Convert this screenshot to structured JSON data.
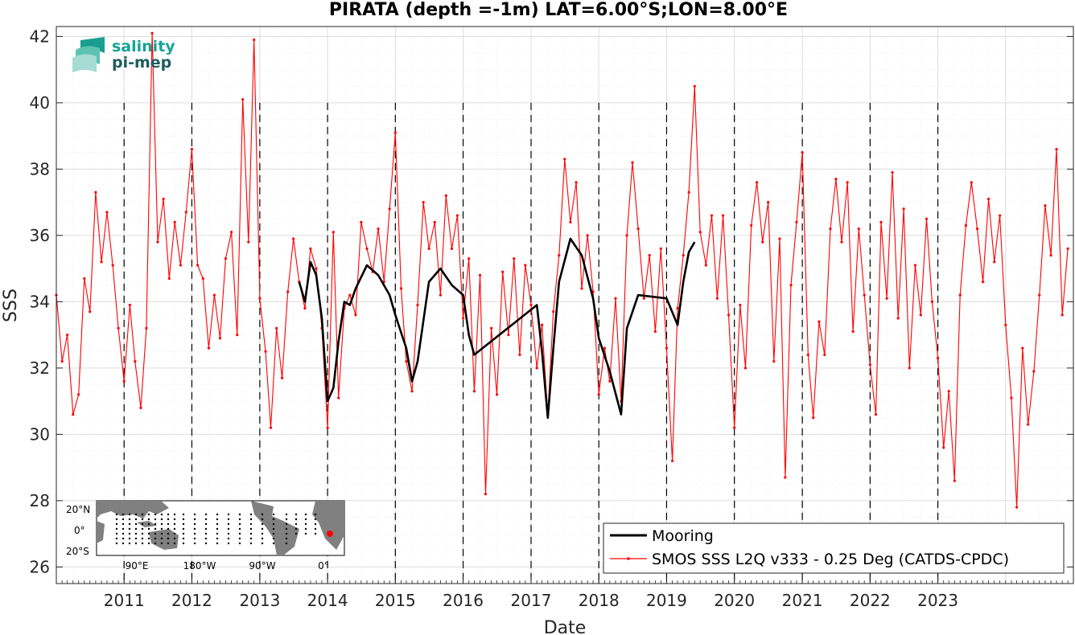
{
  "chart_data": {
    "type": "line",
    "title": "PIRATA (depth =-1m) LAT=6.00°S;LON=8.00°E",
    "xlabel": "Date",
    "ylabel": "SSS",
    "xlim": [
      "2010-01-01",
      "2024-12-31"
    ],
    "ylim": [
      25.5,
      42.3
    ],
    "y_ticks": [
      26,
      28,
      30,
      32,
      34,
      36,
      38,
      40,
      42
    ],
    "x_tick_labels": [
      "2011",
      "2012",
      "2013",
      "2014",
      "2015",
      "2016",
      "2017",
      "2018",
      "2019",
      "2020",
      "2021",
      "2022",
      "2023"
    ],
    "year_marker_lines": [
      "2011",
      "2012",
      "2013",
      "2014",
      "2015",
      "2016",
      "2017",
      "2018",
      "2019",
      "2020",
      "2021",
      "2022",
      "2023"
    ],
    "grid": true,
    "legend_position": "bottom-right",
    "series": [
      {
        "name": "Mooring",
        "color": "#000000",
        "style": "thick-line",
        "points": [
          [
            "2013-08-01",
            34.6
          ],
          [
            "2013-09-01",
            34.0
          ],
          [
            "2013-10-01",
            35.2
          ],
          [
            "2013-11-01",
            34.8
          ],
          [
            "2013-12-01",
            33.5
          ],
          [
            "2014-01-01",
            31.0
          ],
          [
            "2014-02-01",
            31.4
          ],
          [
            "2014-03-01",
            32.8
          ],
          [
            "2014-04-01",
            34.0
          ],
          [
            "2014-05-01",
            33.9
          ],
          [
            "2014-06-01",
            34.4
          ],
          [
            "2014-08-01",
            35.1
          ],
          [
            "2014-10-01",
            34.8
          ],
          [
            "2014-12-01",
            34.2
          ],
          [
            "2015-01-01",
            33.6
          ],
          [
            "2015-03-01",
            32.6
          ],
          [
            "2015-04-01",
            31.6
          ],
          [
            "2015-05-01",
            32.2
          ],
          [
            "2015-07-01",
            34.6
          ],
          [
            "2015-09-01",
            35.0
          ],
          [
            "2015-11-01",
            34.5
          ],
          [
            "2016-01-01",
            34.2
          ],
          [
            "2016-02-01",
            33.0
          ],
          [
            "2016-03-01",
            32.4
          ],
          [
            "2017-02-01",
            33.9
          ],
          [
            "2017-03-01",
            32.5
          ],
          [
            "2017-04-01",
            30.5
          ],
          [
            "2017-05-01",
            32.6
          ],
          [
            "2017-06-01",
            34.6
          ],
          [
            "2017-08-01",
            35.9
          ],
          [
            "2017-10-01",
            35.4
          ],
          [
            "2017-12-01",
            34.1
          ],
          [
            "2018-01-01",
            32.9
          ],
          [
            "2018-03-01",
            31.9
          ],
          [
            "2018-05-01",
            30.6
          ],
          [
            "2018-06-01",
            33.2
          ],
          [
            "2018-08-01",
            34.2
          ],
          [
            "2019-01-01",
            34.1
          ],
          [
            "2019-03-01",
            33.3
          ],
          [
            "2019-04-01",
            34.6
          ],
          [
            "2019-05-01",
            35.5
          ],
          [
            "2019-06-01",
            35.8
          ]
        ]
      },
      {
        "name": "SMOS SSS L2Q v333 - 0.25 Deg (CATDS-CPDC)",
        "color": "#ff0000",
        "style": "line-with-dots",
        "points": [
          [
            "2010-01-01",
            34.2
          ],
          [
            "2010-02-01",
            32.2
          ],
          [
            "2010-03-01",
            33.0
          ],
          [
            "2010-04-01",
            30.6
          ],
          [
            "2010-05-01",
            31.2
          ],
          [
            "2010-06-01",
            34.7
          ],
          [
            "2010-07-01",
            33.7
          ],
          [
            "2010-08-01",
            37.3
          ],
          [
            "2010-09-01",
            35.2
          ],
          [
            "2010-10-01",
            36.7
          ],
          [
            "2010-11-01",
            35.1
          ],
          [
            "2010-12-01",
            33.2
          ],
          [
            "2011-01-01",
            31.6
          ],
          [
            "2011-02-01",
            33.9
          ],
          [
            "2011-03-01",
            32.2
          ],
          [
            "2011-04-01",
            30.8
          ],
          [
            "2011-05-01",
            33.2
          ],
          [
            "2011-06-01",
            42.1
          ],
          [
            "2011-07-01",
            35.8
          ],
          [
            "2011-08-01",
            37.1
          ],
          [
            "2011-09-01",
            34.7
          ],
          [
            "2011-10-01",
            36.4
          ],
          [
            "2011-11-01",
            35.1
          ],
          [
            "2011-12-01",
            36.7
          ],
          [
            "2012-01-01",
            38.6
          ],
          [
            "2012-02-01",
            35.1
          ],
          [
            "2012-03-01",
            34.7
          ],
          [
            "2012-04-01",
            32.6
          ],
          [
            "2012-05-01",
            34.2
          ],
          [
            "2012-06-01",
            32.9
          ],
          [
            "2012-07-01",
            35.3
          ],
          [
            "2012-08-01",
            36.1
          ],
          [
            "2012-09-01",
            33.0
          ],
          [
            "2012-10-01",
            40.1
          ],
          [
            "2012-11-01",
            35.8
          ],
          [
            "2012-12-01",
            41.9
          ],
          [
            "2013-01-01",
            34.1
          ],
          [
            "2013-02-01",
            32.5
          ],
          [
            "2013-03-01",
            30.2
          ],
          [
            "2013-04-01",
            33.2
          ],
          [
            "2013-05-01",
            31.7
          ],
          [
            "2013-06-01",
            34.3
          ],
          [
            "2013-07-01",
            35.9
          ],
          [
            "2013-08-01",
            34.6
          ],
          [
            "2013-09-01",
            33.8
          ],
          [
            "2013-10-01",
            35.6
          ],
          [
            "2013-11-01",
            35.0
          ],
          [
            "2013-12-01",
            33.2
          ],
          [
            "2014-01-01",
            30.2
          ],
          [
            "2014-02-01",
            36.1
          ],
          [
            "2014-03-01",
            31.1
          ],
          [
            "2014-04-01",
            33.8
          ],
          [
            "2014-05-01",
            34.2
          ],
          [
            "2014-06-01",
            33.6
          ],
          [
            "2014-07-01",
            36.4
          ],
          [
            "2014-08-01",
            35.6
          ],
          [
            "2014-09-01",
            34.9
          ],
          [
            "2014-10-01",
            36.2
          ],
          [
            "2014-11-01",
            34.6
          ],
          [
            "2014-12-01",
            36.8
          ],
          [
            "2015-01-01",
            39.1
          ],
          [
            "2015-02-01",
            34.4
          ],
          [
            "2015-03-01",
            32.2
          ],
          [
            "2015-04-01",
            31.3
          ],
          [
            "2015-05-01",
            33.9
          ],
          [
            "2015-06-01",
            37.0
          ],
          [
            "2015-07-01",
            35.6
          ],
          [
            "2015-08-01",
            36.4
          ],
          [
            "2015-09-01",
            34.2
          ],
          [
            "2015-10-01",
            37.2
          ],
          [
            "2015-11-01",
            35.6
          ],
          [
            "2015-12-01",
            36.6
          ],
          [
            "2016-01-01",
            33.5
          ],
          [
            "2016-02-01",
            35.3
          ],
          [
            "2016-03-01",
            31.3
          ],
          [
            "2016-04-01",
            34.8
          ],
          [
            "2016-05-01",
            28.2
          ],
          [
            "2016-06-01",
            33.2
          ],
          [
            "2016-07-01",
            31.2
          ],
          [
            "2016-08-01",
            34.9
          ],
          [
            "2016-09-01",
            33.0
          ],
          [
            "2016-10-01",
            35.3
          ],
          [
            "2016-11-01",
            32.4
          ],
          [
            "2016-12-01",
            35.1
          ],
          [
            "2017-01-01",
            33.9
          ],
          [
            "2017-02-01",
            32.0
          ],
          [
            "2017-03-01",
            33.3
          ],
          [
            "2017-04-01",
            30.6
          ],
          [
            "2017-05-01",
            33.7
          ],
          [
            "2017-06-01",
            35.4
          ],
          [
            "2017-07-01",
            38.3
          ],
          [
            "2017-08-01",
            36.4
          ],
          [
            "2017-09-01",
            37.6
          ],
          [
            "2017-10-01",
            34.4
          ],
          [
            "2017-11-01",
            36.0
          ],
          [
            "2017-12-01",
            34.3
          ],
          [
            "2018-01-01",
            31.2
          ],
          [
            "2018-02-01",
            32.6
          ],
          [
            "2018-03-01",
            31.6
          ],
          [
            "2018-04-01",
            34.1
          ],
          [
            "2018-05-01",
            31.0
          ],
          [
            "2018-06-01",
            36.0
          ],
          [
            "2018-07-01",
            38.2
          ],
          [
            "2018-08-01",
            36.2
          ],
          [
            "2018-09-01",
            34.1
          ],
          [
            "2018-10-01",
            35.4
          ],
          [
            "2018-11-01",
            33.1
          ],
          [
            "2018-12-01",
            35.6
          ],
          [
            "2019-01-01",
            32.6
          ],
          [
            "2019-02-01",
            29.2
          ],
          [
            "2019-03-01",
            33.8
          ],
          [
            "2019-04-01",
            35.4
          ],
          [
            "2019-05-01",
            37.3
          ],
          [
            "2019-06-01",
            40.5
          ],
          [
            "2019-07-01",
            36.1
          ],
          [
            "2019-08-01",
            35.1
          ],
          [
            "2019-09-01",
            36.6
          ],
          [
            "2019-10-01",
            34.1
          ],
          [
            "2019-11-01",
            36.6
          ],
          [
            "2019-12-01",
            33.6
          ],
          [
            "2020-01-01",
            30.2
          ],
          [
            "2020-02-01",
            33.9
          ],
          [
            "2020-03-01",
            32.0
          ],
          [
            "2020-04-01",
            36.3
          ],
          [
            "2020-05-01",
            37.6
          ],
          [
            "2020-06-01",
            35.8
          ],
          [
            "2020-07-01",
            37.0
          ],
          [
            "2020-08-01",
            32.2
          ],
          [
            "2020-09-01",
            35.9
          ],
          [
            "2020-10-01",
            28.7
          ],
          [
            "2020-11-01",
            34.5
          ],
          [
            "2020-12-01",
            36.4
          ],
          [
            "2021-01-01",
            38.5
          ],
          [
            "2021-02-01",
            32.4
          ],
          [
            "2021-03-01",
            30.5
          ],
          [
            "2021-04-01",
            33.4
          ],
          [
            "2021-05-01",
            32.4
          ],
          [
            "2021-06-01",
            36.2
          ],
          [
            "2021-07-01",
            37.7
          ],
          [
            "2021-08-01",
            35.8
          ],
          [
            "2021-09-01",
            37.6
          ],
          [
            "2021-10-01",
            33.1
          ],
          [
            "2021-11-01",
            36.2
          ],
          [
            "2021-12-01",
            34.2
          ],
          [
            "2022-01-01",
            32.1
          ],
          [
            "2022-02-01",
            30.6
          ],
          [
            "2022-03-01",
            36.4
          ],
          [
            "2022-04-01",
            34.1
          ],
          [
            "2022-05-01",
            37.9
          ],
          [
            "2022-06-01",
            33.5
          ],
          [
            "2022-07-01",
            36.8
          ],
          [
            "2022-08-01",
            32.0
          ],
          [
            "2022-09-01",
            35.1
          ],
          [
            "2022-10-01",
            33.6
          ],
          [
            "2022-11-01",
            36.5
          ],
          [
            "2022-12-01",
            34.0
          ],
          [
            "2023-01-01",
            32.3
          ],
          [
            "2023-02-01",
            29.6
          ],
          [
            "2023-03-01",
            31.3
          ],
          [
            "2023-04-01",
            28.6
          ],
          [
            "2023-05-01",
            34.2
          ],
          [
            "2023-06-01",
            36.3
          ],
          [
            "2023-07-01",
            37.6
          ],
          [
            "2023-08-01",
            36.2
          ],
          [
            "2023-09-01",
            34.6
          ],
          [
            "2023-10-01",
            37.1
          ],
          [
            "2023-11-01",
            35.2
          ],
          [
            "2023-12-01",
            36.6
          ],
          [
            "2024-01-01",
            33.3
          ],
          [
            "2024-02-01",
            31.1
          ],
          [
            "2024-03-01",
            27.8
          ],
          [
            "2024-04-01",
            32.6
          ],
          [
            "2024-05-01",
            30.3
          ],
          [
            "2024-06-01",
            31.9
          ],
          [
            "2024-07-01",
            34.2
          ],
          [
            "2024-08-01",
            36.9
          ],
          [
            "2024-09-01",
            35.4
          ],
          [
            "2024-10-01",
            38.6
          ],
          [
            "2024-11-01",
            33.6
          ],
          [
            "2024-12-01",
            35.6
          ]
        ]
      }
    ],
    "inset_map": {
      "lat_labels": [
        "20°N",
        "0°",
        "20°S"
      ],
      "lon_labels": [
        "90°E",
        "180°W",
        "90°W",
        "0°"
      ],
      "marker_color": "#ff0000"
    }
  },
  "logo": {
    "line1": "salinity",
    "line2": "pi-mep"
  },
  "colors": {
    "ocean": "#ffffff",
    "land": "#808080",
    "grid": "#e3e3e3",
    "logo_teal": "#17a396",
    "logo_dark": "#1f5c5c"
  }
}
